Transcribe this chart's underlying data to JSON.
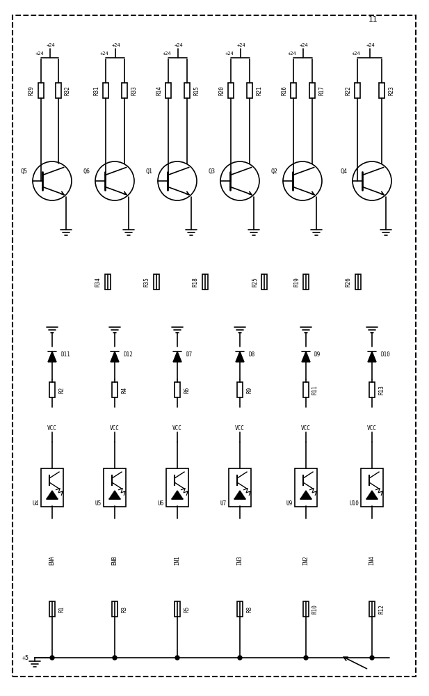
{
  "figure_width": 6.17,
  "figure_height": 10.0,
  "dpi": 100,
  "bg_color": "#ffffff",
  "line_color": "#000000",
  "line_width": 1.2,
  "border_color": "#000000",
  "border_lw": 1.5,
  "label_11": "11",
  "label_plus5": "+5",
  "label_vcc": "VCC",
  "label_plus24": "+24",
  "transistors": [
    "Q5",
    "Q6",
    "Q1",
    "Q3",
    "Q2",
    "Q4"
  ],
  "diodes": [
    "D11",
    "D12",
    "D7",
    "D8",
    "D9",
    "D10"
  ],
  "optocouplers": [
    "U4",
    "U5",
    "U6",
    "U7",
    "U9",
    "U10"
  ],
  "input_labels": [
    "ENA",
    "ENB",
    "IN1",
    "IN3",
    "IN2",
    "IN4"
  ],
  "resistors_top": [
    "R29",
    "R32",
    "R31",
    "R33",
    "R14",
    "R15",
    "R20",
    "R21",
    "R16",
    "R17",
    "R22",
    "R23"
  ],
  "resistors_mid": [
    "R34",
    "R35",
    "R18",
    "R25",
    "R19",
    "R26"
  ],
  "resistors_diode": [
    "R2",
    "R4",
    "R6",
    "R9",
    "R11",
    "R13"
  ],
  "resistors_bot": [
    "R1",
    "R3",
    "R5",
    "R8",
    "R10",
    "R12"
  ]
}
